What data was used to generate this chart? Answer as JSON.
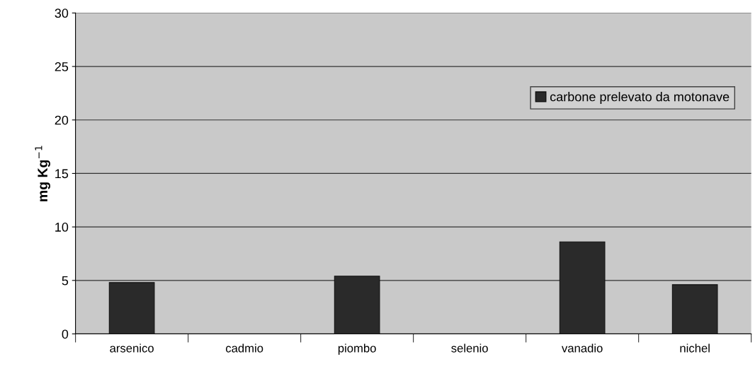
{
  "chart_data": {
    "type": "bar",
    "ylabel": "mg Kg$^{−1}$",
    "categories": [
      "arsenico",
      "cadmio",
      "piombo",
      "selenio",
      "vanadio",
      "nichel"
    ],
    "series": [
      {
        "name": "carbone prelevato da motonave",
        "color": "#2a2a2a",
        "values": [
          4.8,
          null,
          5.4,
          null,
          8.6,
          4.6
        ]
      }
    ],
    "ylim": [
      0,
      30
    ],
    "yticks": [
      0,
      5,
      10,
      15,
      20,
      25,
      30
    ],
    "grid": "y",
    "legend": "top right"
  }
}
